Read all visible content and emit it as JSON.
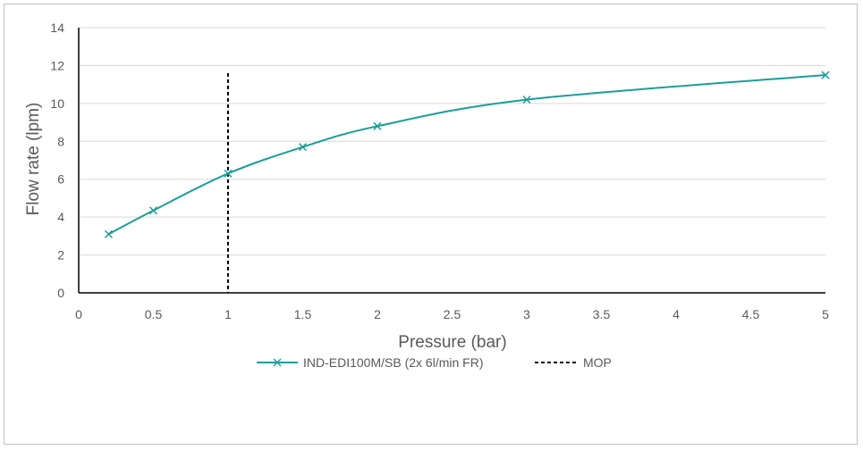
{
  "chart_data": {
    "type": "line",
    "title": "",
    "xlabel": "Pressure (bar)",
    "ylabel": "Flow rate (lpm)",
    "xlim": [
      0,
      5
    ],
    "ylim": [
      0,
      14
    ],
    "x_ticks": [
      "0",
      "0.5",
      "1",
      "1.5",
      "2",
      "2.5",
      "3",
      "3.5",
      "4",
      "4.5",
      "5"
    ],
    "y_ticks": [
      "0",
      "2",
      "4",
      "6",
      "8",
      "10",
      "12",
      "14"
    ],
    "grid": "horizontal",
    "legend_position": "bottom",
    "series": [
      {
        "name": "IND-EDI100M/SB (2x 6l/min FR)",
        "color": "#1a9e9a",
        "marker": "x",
        "smooth": true,
        "x": [
          0.2,
          0.5,
          1,
          1.5,
          2,
          3,
          5
        ],
        "y": [
          3.1,
          4.35,
          6.3,
          7.7,
          8.8,
          10.2,
          11.5
        ]
      }
    ],
    "reference_lines": [
      {
        "name": "MOP",
        "orientation": "vertical",
        "x": 1,
        "y_range": [
          0,
          11.6
        ],
        "style": "dashed",
        "color": "#000000"
      }
    ]
  }
}
